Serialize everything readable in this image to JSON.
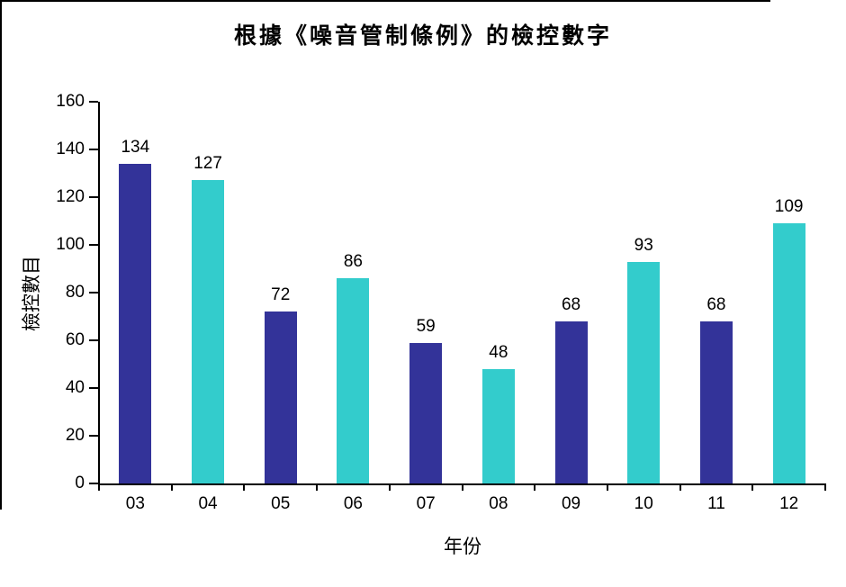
{
  "chart_data": {
    "type": "bar",
    "title": "根據《噪音管制條例》的檢控數字",
    "xlabel": "年份",
    "ylabel": "檢控數目",
    "categories": [
      "03",
      "04",
      "05",
      "06",
      "07",
      "08",
      "09",
      "10",
      "11",
      "12"
    ],
    "values": [
      134,
      127,
      72,
      86,
      59,
      48,
      68,
      93,
      68,
      109
    ],
    "bar_colors": [
      "#333399",
      "#33CCCC",
      "#333399",
      "#33CCCC",
      "#333399",
      "#33CCCC",
      "#333399",
      "#33CCCC",
      "#333399",
      "#33CCCC"
    ],
    "data_labels": [
      134,
      127,
      72,
      86,
      59,
      48,
      68,
      93,
      68,
      109
    ],
    "ylim": [
      0,
      160
    ],
    "yticks": [
      0,
      20,
      40,
      60,
      80,
      100,
      120,
      140,
      160
    ],
    "grid": false,
    "legend": "none",
    "colors": {
      "series_odd_years": "#333399",
      "series_even_years": "#33CCCC",
      "axis": "#000000",
      "text": "#000000",
      "background": "#FFFFFF",
      "frame_border": "#000000"
    }
  }
}
